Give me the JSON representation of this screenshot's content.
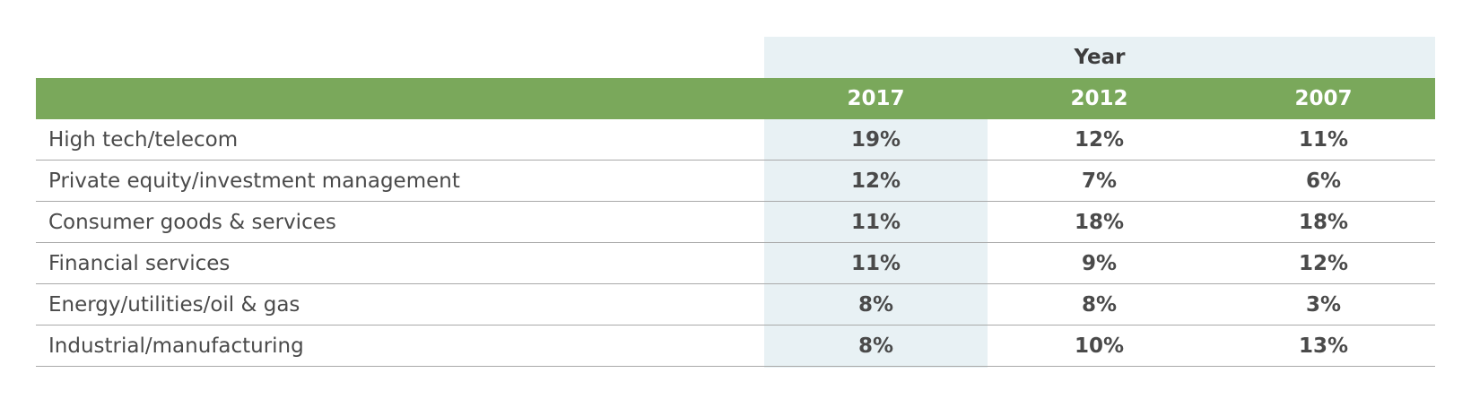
{
  "chart_data": {
    "type": "table",
    "header_group_label": "Year",
    "columns": [
      "2017",
      "2012",
      "2007"
    ],
    "highlighted_column": "2017",
    "rows": [
      {
        "label": "High tech/telecom",
        "values": [
          "19%",
          "12%",
          "11%"
        ]
      },
      {
        "label": "Private equity/investment management",
        "values": [
          "12%",
          "7%",
          "6%"
        ]
      },
      {
        "label": "Consumer goods & services",
        "values": [
          "11%",
          "18%",
          "18%"
        ]
      },
      {
        "label": "Financial services",
        "values": [
          "11%",
          "9%",
          "12%"
        ]
      },
      {
        "label": "Energy/utilities/oil & gas",
        "values": [
          "8%",
          "8%",
          "3%"
        ]
      },
      {
        "label": "Industrial/manufacturing",
        "values": [
          "8%",
          "10%",
          "13%"
        ]
      }
    ]
  },
  "colors": {
    "header_green": "#7aa85b",
    "highlight_blue": "#e8f1f4",
    "text": "#4a4a4a",
    "rule": "#a9a9a9"
  }
}
